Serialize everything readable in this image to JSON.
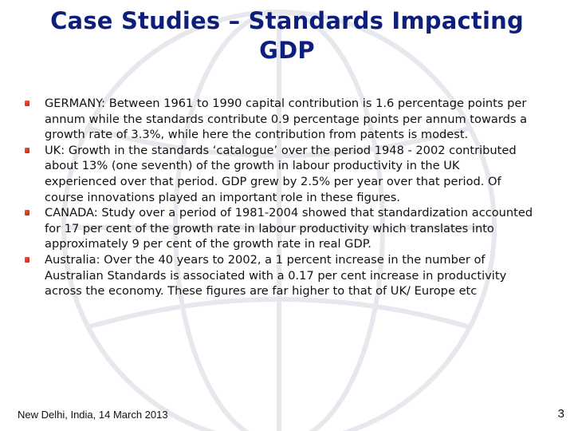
{
  "slide": {
    "title_line1": "Case Studies – Standards Impacting",
    "title_line2": "GDP",
    "bullets": [
      {
        "heading": "GERMANY",
        "text": ": Between 1961 to 1990 capital contribution is 1.6 percentage points per annum while the standards contribute 0.9 percentage points per annum towards a growth rate of 3.3%, while here the contribution from patents is modest."
      },
      {
        "heading": "UK",
        "text": ": Growth in the standards ‘catalogue’ over the period 1948 - 2002 contributed about 13% (one seventh) of the growth in labour productivity in the UK experienced  over that  period. GDP  grew  by  2.5%  per  year  over  that period.  Of course innovations played an important role in these figures."
      },
      {
        "heading": "CANADA",
        "text": ": Study over a period  of  1981-2004 showed that standardization  accounted  for  17  per  cent  of  the  growth  rate  in labour  productivity  which translates into approximately 9 per cent of the growth rate in real GDP."
      },
      {
        "heading": "Australia",
        "text": ": Over the 40 years to 2002, a 1 percent increase in the number of Australian  Standards  is  associated  with  a  0.17  per  cent  increase  in  productivity  across  the economy. These figures are far higher to that of UK/ Europe etc"
      }
    ],
    "footer_left": "New Delhi, India, 14 March 2013",
    "slide_number": "3"
  },
  "colors": {
    "title": "#0d1f7a",
    "bullet_marker": "#d83a24",
    "emblem_lines": "#e4e6ec"
  },
  "icons": {
    "bullet": "square-bullet-icon",
    "background": "globe-emblem-watermark"
  }
}
